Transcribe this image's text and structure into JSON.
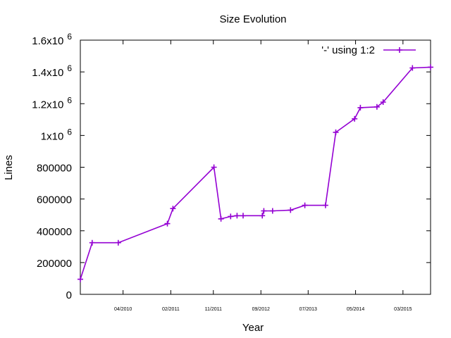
{
  "chart_data": {
    "type": "line",
    "title": "Size Evolution",
    "xlabel": "Year",
    "ylabel": "Lines",
    "x_ticks": [
      "04/2010",
      "02/2011",
      "11/2011",
      "09/2012",
      "07/2013",
      "05/2014",
      "03/2015"
    ],
    "y_ticks": [
      {
        "value": 0,
        "label": "0",
        "exp": ""
      },
      {
        "value": 200000,
        "label": "200000",
        "exp": ""
      },
      {
        "value": 400000,
        "label": "400000",
        "exp": ""
      },
      {
        "value": 600000,
        "label": "600000",
        "exp": ""
      },
      {
        "value": 800000,
        "label": "800000",
        "exp": ""
      },
      {
        "value": 1000000,
        "label": "1x10",
        "exp": "6"
      },
      {
        "value": 1200000,
        "label": "1.2x10",
        "exp": "6"
      },
      {
        "value": 1400000,
        "label": "1.4x10",
        "exp": "6"
      },
      {
        "value": 1600000,
        "label": "1.6x10",
        "exp": "6"
      }
    ],
    "ylim": [
      0,
      1600000
    ],
    "xlim": [
      "2009-07-01",
      "2015-08-25"
    ],
    "grid": false,
    "legend_position": "top-right",
    "series": [
      {
        "name": "'-' using 1:2",
        "color": "#9400d3",
        "marker": "plus",
        "points": [
          {
            "x": "2009-07-01",
            "y": 95000
          },
          {
            "x": "2009-09-15",
            "y": 325000
          },
          {
            "x": "2010-03-01",
            "y": 325000
          },
          {
            "x": "2011-01-10",
            "y": 445000
          },
          {
            "x": "2011-02-15",
            "y": 540000
          },
          {
            "x": "2011-11-05",
            "y": 800000
          },
          {
            "x": "2011-12-20",
            "y": 475000
          },
          {
            "x": "2012-02-20",
            "y": 490000
          },
          {
            "x": "2012-04-01",
            "y": 495000
          },
          {
            "x": "2012-05-10",
            "y": 495000
          },
          {
            "x": "2012-09-10",
            "y": 495000
          },
          {
            "x": "2012-09-20",
            "y": 525000
          },
          {
            "x": "2012-11-15",
            "y": 525000
          },
          {
            "x": "2013-03-10",
            "y": 530000
          },
          {
            "x": "2013-06-10",
            "y": 560000
          },
          {
            "x": "2013-10-20",
            "y": 560000
          },
          {
            "x": "2013-12-25",
            "y": 1020000
          },
          {
            "x": "2014-04-25",
            "y": 1105000
          },
          {
            "x": "2014-06-01",
            "y": 1175000
          },
          {
            "x": "2014-09-15",
            "y": 1180000
          },
          {
            "x": "2014-10-25",
            "y": 1210000
          },
          {
            "x": "2015-05-01",
            "y": 1425000
          },
          {
            "x": "2015-08-25",
            "y": 1430000
          }
        ]
      }
    ]
  }
}
